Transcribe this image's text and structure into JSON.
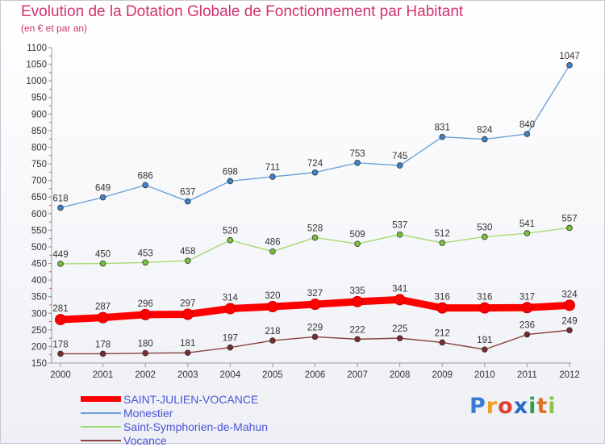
{
  "header": {
    "title": "Evolution de la Dotation Globale de Fonctionnement par Habitant",
    "subtitle": "(en € et par an)"
  },
  "logo": {
    "text": "Proxiti",
    "letters": [
      "P",
      "r",
      "o",
      "x",
      "i",
      "t",
      "i"
    ]
  },
  "chart_data": {
    "type": "line",
    "title": "Evolution de la Dotation Globale de Fonctionnement par Habitant",
    "subtitle": "(en € et par an)",
    "xlabel": "",
    "ylabel": "",
    "x": [
      "2000",
      "2001",
      "2002",
      "2003",
      "2004",
      "2005",
      "2006",
      "2007",
      "2008",
      "2009",
      "2010",
      "2011",
      "2012"
    ],
    "ylim": [
      150,
      1100
    ],
    "yticks": [
      150,
      200,
      250,
      300,
      350,
      400,
      450,
      500,
      550,
      600,
      650,
      700,
      750,
      800,
      850,
      900,
      950,
      1000,
      1050,
      1100
    ],
    "grid": false,
    "legend_position": "bottom-left",
    "series": [
      {
        "name": "SAINT-JULIEN-VOCANCE",
        "color": "#ff0000",
        "values": [
          281,
          287,
          296,
          297,
          314,
          320,
          327,
          335,
          341,
          316,
          316,
          317,
          324
        ]
      },
      {
        "name": "Monestier",
        "color": "#6aa2d8",
        "marker_color": "#3f82c8",
        "values": [
          618,
          649,
          686,
          637,
          698,
          711,
          724,
          753,
          745,
          831,
          824,
          840,
          1047
        ]
      },
      {
        "name": "Saint-Symphorien-de-Mahun",
        "color": "#a4da72",
        "marker_color": "#78c43a",
        "values": [
          449,
          450,
          453,
          458,
          520,
          486,
          528,
          509,
          537,
          512,
          530,
          541,
          557
        ]
      },
      {
        "name": "Vocance",
        "color": "#8a4040",
        "marker_color": "#7a2c2c",
        "values": [
          178,
          178,
          180,
          181,
          197,
          218,
          229,
          222,
          225,
          212,
          191,
          236,
          249
        ]
      }
    ]
  }
}
